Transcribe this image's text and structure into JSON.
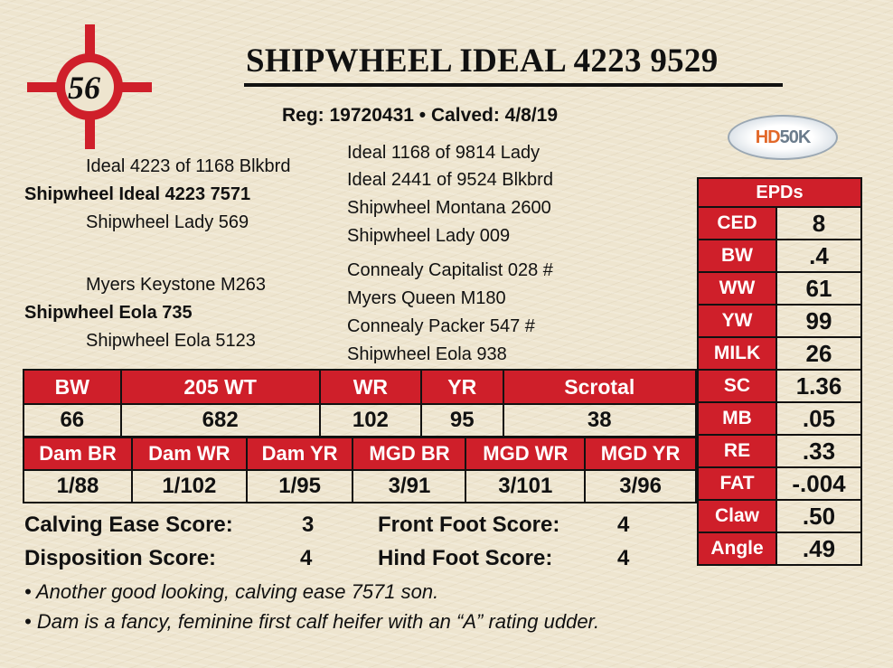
{
  "lot": {
    "number": "56",
    "icon": "crosshair-lot-badge",
    "color": "#cf1f2a"
  },
  "title": "SHIPWHEEL IDEAL 4223 9529",
  "reg_line": "Reg: 19720431 • Calved: 4/8/19",
  "logo": {
    "text_hd": "HD",
    "text_50k": "50K"
  },
  "pedigree": {
    "sire": "Shipwheel Ideal 4223 7571",
    "sire_sire": "Ideal 4223 of 1168 Blkbrd",
    "sire_dam": "Shipwheel Lady 569",
    "sss": "Ideal 1168 of 9814 Lady",
    "ssd": "Ideal 2441 of 9524 Blkbrd",
    "sds": "Shipwheel Montana 2600",
    "sdd": "Shipwheel Lady 009",
    "dam": "Shipwheel Eola 735",
    "dam_sire": "Myers Keystone M263",
    "dam_dam": "Shipwheel Eola 5123",
    "dss": "Connealy Capitalist 028 #",
    "dsd": "Myers Queen M180",
    "dds": "Connealy Packer 547 #",
    "ddd": "Shipwheel Eola 938"
  },
  "performance": {
    "headers": [
      "BW",
      "205 WT",
      "WR",
      "YR",
      "Scrotal"
    ],
    "values": [
      "66",
      "682",
      "102",
      "95",
      "38"
    ]
  },
  "dam_records": {
    "headers": [
      "Dam BR",
      "Dam WR",
      "Dam YR",
      "MGD BR",
      "MGD WR",
      "MGD YR"
    ],
    "values": [
      "1/88",
      "1/102",
      "1/95",
      "3/91",
      "3/101",
      "3/96"
    ]
  },
  "epds": {
    "title": "EPDs",
    "rows": [
      {
        "label": "CED",
        "value": "8"
      },
      {
        "label": "BW",
        "value": ".4"
      },
      {
        "label": "WW",
        "value": "61"
      },
      {
        "label": "YW",
        "value": "99"
      },
      {
        "label": "MILK",
        "value": "26"
      },
      {
        "label": "SC",
        "value": "1.36"
      },
      {
        "label": "MB",
        "value": ".05"
      },
      {
        "label": "RE",
        "value": ".33"
      },
      {
        "label": "FAT",
        "value": "-.004"
      },
      {
        "label": "Claw",
        "value": ".50"
      },
      {
        "label": "Angle",
        "value": ".49"
      }
    ]
  },
  "scores": {
    "calving_label": "Calving Ease Score:",
    "calving": "3",
    "disposition_label": "Disposition Score:",
    "disposition": "4",
    "front_label": "Front Foot Score:",
    "front": "4",
    "hind_label": "Hind Foot Score:",
    "hind": "4"
  },
  "notes": [
    "• Another good looking, calving ease 7571 son.",
    "• Dam is a fancy, feminine first calf heifer with an “A” rating udder."
  ]
}
